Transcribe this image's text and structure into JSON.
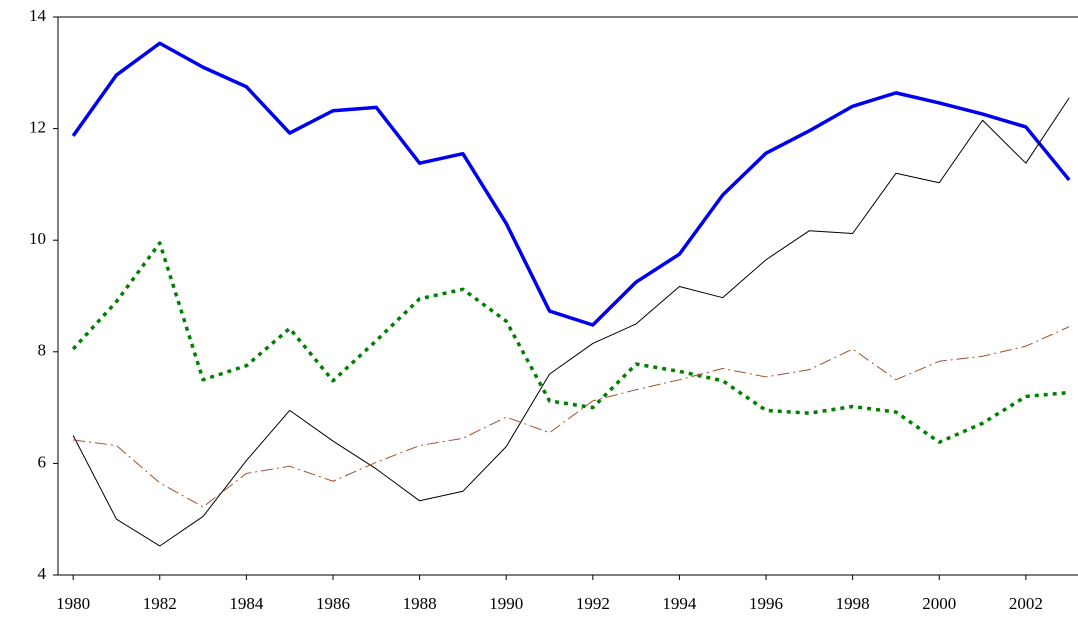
{
  "chart_data": {
    "type": "line",
    "x": [
      1980,
      1981,
      1982,
      1983,
      1984,
      1985,
      1986,
      1987,
      1988,
      1989,
      1990,
      1991,
      1992,
      1993,
      1994,
      1995,
      1996,
      1997,
      1998,
      1999,
      2000,
      2001,
      2002,
      2003
    ],
    "series": [
      {
        "color": "#0000ee",
        "style": "solid",
        "width": 3.5,
        "values": [
          11.87,
          12.96,
          13.53,
          13.1,
          12.75,
          11.92,
          12.32,
          12.38,
          11.38,
          11.55,
          10.3,
          8.73,
          8.48,
          9.25,
          9.75,
          10.81,
          11.56,
          11.96,
          12.4,
          12.64,
          12.46,
          12.26,
          12.03,
          11.08
        ]
      },
      {
        "color": "#000000",
        "style": "solid",
        "width": 1,
        "values": [
          6.5,
          5.0,
          4.52,
          5.05,
          6.05,
          6.95,
          6.4,
          5.9,
          5.33,
          5.5,
          6.3,
          7.6,
          8.15,
          8.5,
          9.17,
          8.97,
          9.65,
          10.17,
          10.12,
          11.2,
          11.03,
          12.15,
          11.38,
          12.55
        ]
      },
      {
        "color": "#008000",
        "style": "dotted",
        "width": 3.5,
        "values": [
          8.05,
          8.9,
          9.95,
          7.5,
          7.75,
          8.42,
          7.48,
          8.2,
          8.95,
          9.12,
          8.55,
          7.12,
          7.0,
          7.78,
          7.65,
          7.48,
          6.95,
          6.9,
          7.02,
          6.92,
          6.38,
          6.72,
          7.2,
          7.27
        ]
      },
      {
        "color": "#a0522d",
        "style": "dashdot",
        "width": 1,
        "values": [
          6.42,
          6.32,
          5.65,
          5.22,
          5.82,
          5.95,
          5.68,
          6.02,
          6.32,
          6.45,
          6.83,
          6.55,
          7.12,
          7.32,
          7.5,
          7.7,
          7.55,
          7.68,
          8.05,
          7.5,
          7.83,
          7.92,
          8.1,
          8.45
        ]
      }
    ],
    "xlim": [
      1979.65,
      2003.25
    ],
    "xticks": [
      1980,
      1982,
      1984,
      1986,
      1988,
      1990,
      1992,
      1994,
      1996,
      1998,
      2000,
      2002
    ],
    "ylim": [
      4,
      14
    ],
    "yticks": [
      4,
      6,
      8,
      10,
      12,
      14
    ],
    "grid": false
  }
}
